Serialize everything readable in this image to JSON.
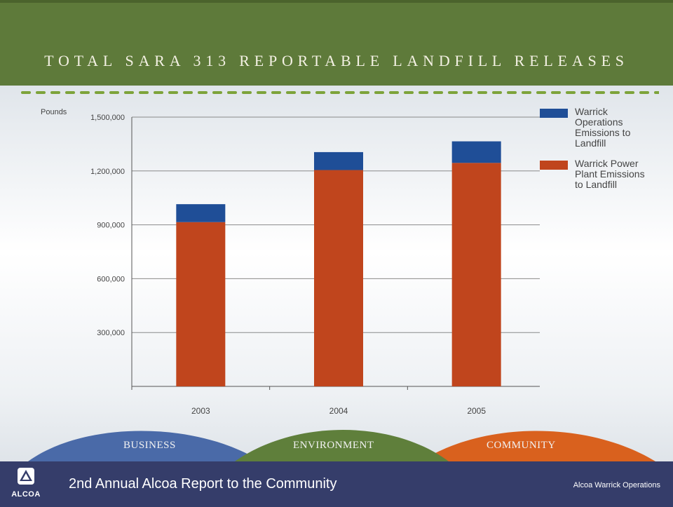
{
  "header": {
    "title": "TOTAL SARA 313 REPORTABLE LANDFILL RELEASES"
  },
  "colors": {
    "header_green": "#5e7a3a",
    "power_plant": "#c0451d",
    "operations": "#1f4e97",
    "business": "#4a6aa8",
    "environment": "#5f7f3b",
    "community": "#d9611e",
    "footer": "#353d6a"
  },
  "chart_data": {
    "type": "bar",
    "stacked": true,
    "unit_label": "Pounds",
    "categories": [
      "2003",
      "2004",
      "2005"
    ],
    "series": [
      {
        "name": "Warrick Power Plant Emissions to Landfill",
        "values": [
          915000,
          1205000,
          1245000
        ]
      },
      {
        "name": "Warrick Operations Emissions to Landfill",
        "values": [
          100000,
          100000,
          120000
        ]
      }
    ],
    "ylim": [
      0,
      1500000
    ],
    "yticks": [
      300000,
      600000,
      900000,
      1200000,
      1500000
    ],
    "ytick_labels": [
      "300,000",
      "600,000",
      "900,000",
      "1,200,000",
      "1,500,000"
    ],
    "grid": true,
    "legend": "right"
  },
  "legend": {
    "items": [
      {
        "label": "Warrick Operations Emissions to Landfill",
        "icon": "blue-swatch"
      },
      {
        "label": "Warrick Power Plant Emissions to Landfill",
        "icon": "orange-swatch"
      }
    ]
  },
  "pillars": {
    "business": "BUSINESS",
    "environment": "ENVIRONMENT",
    "community": "COMMUNITY"
  },
  "footer": {
    "logo_text": "ALCOA",
    "report_title": "2nd Annual Alcoa Report to the Community",
    "operations": "Alcoa Warrick Operations"
  }
}
